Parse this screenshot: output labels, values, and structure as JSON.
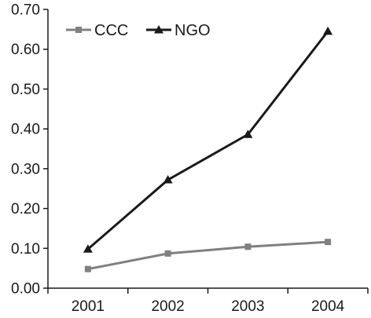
{
  "chart_data": {
    "type": "line",
    "title": "",
    "xlabel": "",
    "ylabel": "",
    "categories": [
      "2001",
      "2002",
      "2003",
      "2004"
    ],
    "ylim": [
      0,
      0.7
    ],
    "yticks": [
      "0.00",
      "0.10",
      "0.20",
      "0.30",
      "0.40",
      "0.50",
      "0.60",
      "0.70"
    ],
    "grid": false,
    "legend": {
      "position": "top-left"
    },
    "series": [
      {
        "name": "CCC",
        "values": [
          0.048,
          0.087,
          0.104,
          0.116
        ],
        "marker": "square",
        "color": "#808080"
      },
      {
        "name": "NGO",
        "values": [
          0.098,
          0.272,
          0.386,
          0.645
        ],
        "marker": "triangle",
        "color": "#1a1a1a"
      }
    ]
  }
}
